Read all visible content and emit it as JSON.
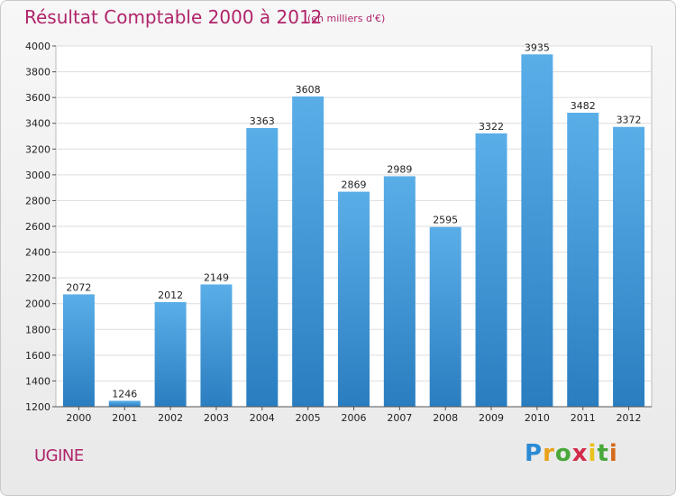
{
  "chart_data": {
    "type": "bar",
    "title": "Résultat Comptable 2000 à 2012",
    "subtitle": "(en milliers d'€)",
    "categories": [
      "2000",
      "2001",
      "2002",
      "2003",
      "2004",
      "2005",
      "2006",
      "2007",
      "2008",
      "2009",
      "2010",
      "2011",
      "2012"
    ],
    "values": [
      2072,
      1246,
      2012,
      2149,
      3363,
      3608,
      2869,
      2989,
      2595,
      3322,
      3935,
      3482,
      3372
    ],
    "ylim": [
      1200,
      4000
    ],
    "yticks": [
      1200,
      1400,
      1600,
      1800,
      2000,
      2200,
      2400,
      2600,
      2800,
      3000,
      3200,
      3400,
      3600,
      3800,
      4000
    ],
    "grid": true,
    "bar_color_top": "#5aaee8",
    "bar_color_bottom": "#2a7ec0"
  },
  "commune": "UGINE",
  "logo": {
    "letters": [
      "P",
      "r",
      "o",
      "x",
      "i",
      "t",
      "i"
    ],
    "colors": [
      "#2a8ad4",
      "#e8a21a",
      "#4aa83a",
      "#d42a4a",
      "#e8c21a",
      "#4aa83a",
      "#d46a1a"
    ]
  }
}
